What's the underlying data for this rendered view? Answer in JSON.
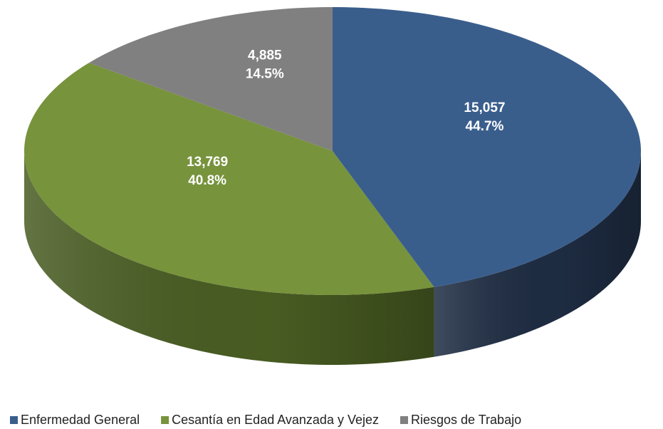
{
  "chart_data": {
    "type": "pie3d",
    "categories": [
      "Enfermedad General",
      "Cesantía en Edad Avanzada y Vejez",
      "Riesgos de Trabajo"
    ],
    "values": [
      15057,
      13769,
      4885
    ],
    "value_labels": [
      "15,057",
      "13,769",
      "4,885"
    ],
    "percent_labels": [
      "44.7%",
      "40.8%",
      "14.5%"
    ],
    "colors": [
      "#3a5e8c",
      "#77933c",
      "#808080"
    ],
    "side_colors": [
      "#1e2c42",
      "#485c22",
      "#505050"
    ],
    "legend": "bottom"
  }
}
